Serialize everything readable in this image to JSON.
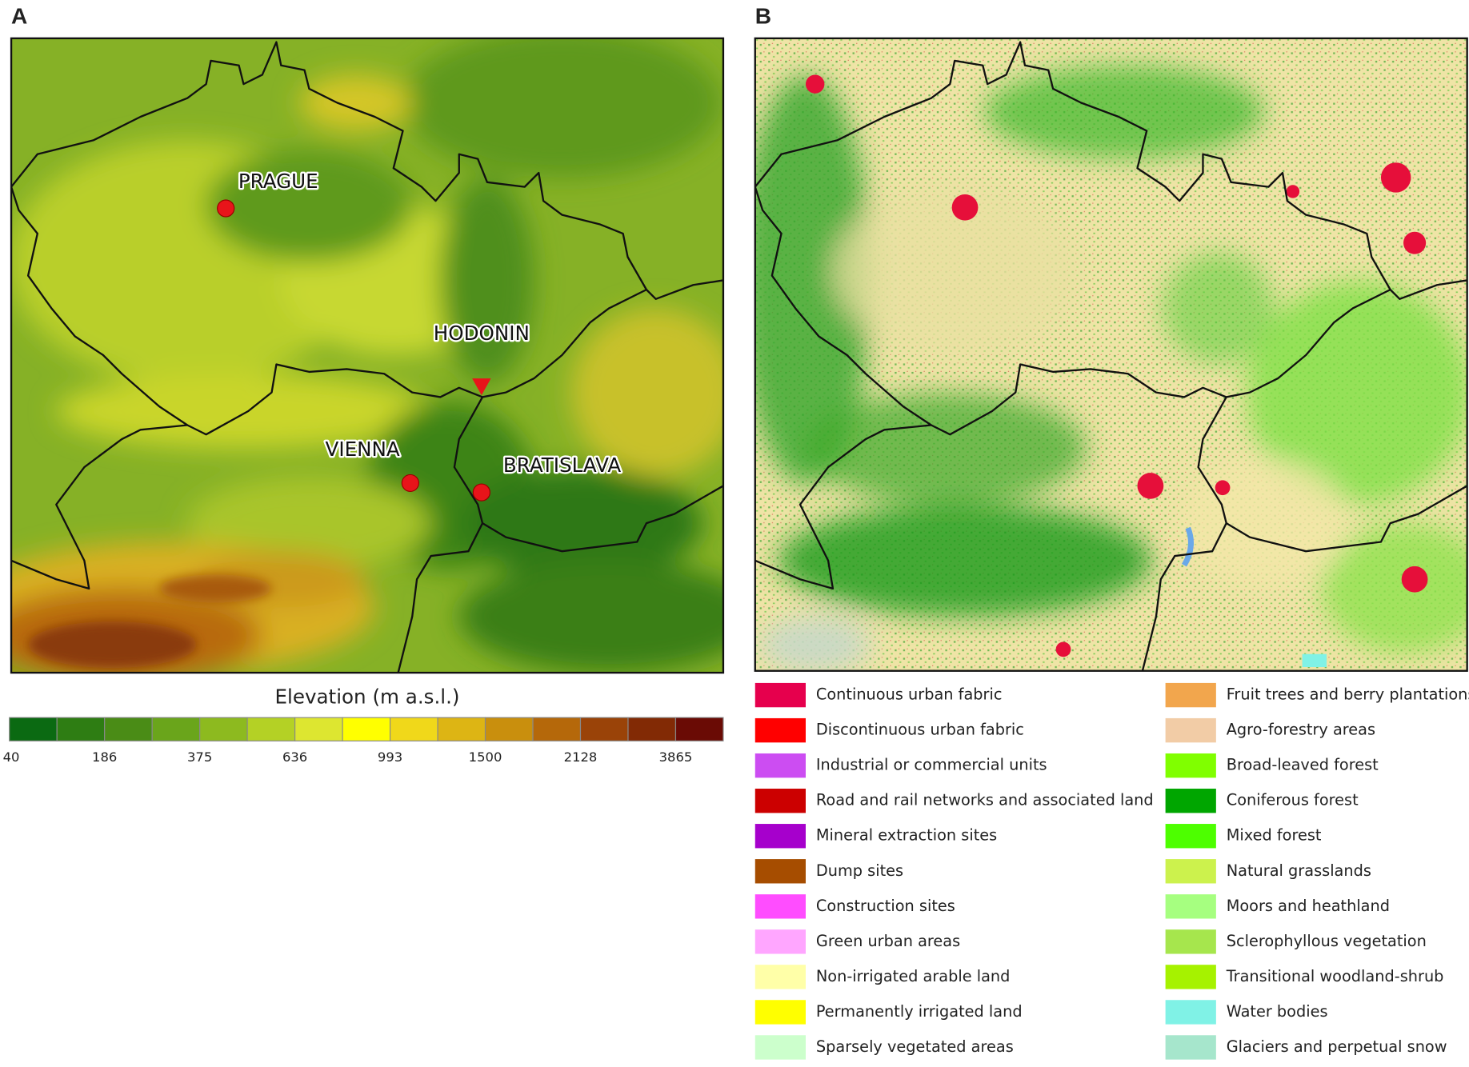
{
  "panels": [
    {
      "label": "A",
      "places": [
        "PRAGUE",
        "HODONIN",
        "VIENNA",
        "BRATISLAVA"
      ],
      "colorbar": {
        "title": "Elevation (m a.s.l.)",
        "colors": [
          "#0b6a12",
          "#2e7d13",
          "#4a8c16",
          "#6aa51b",
          "#8dba1f",
          "#b4d125",
          "#dde630",
          "#ffff00",
          "#f0d81a",
          "#ddb514",
          "#c98f0d",
          "#b5680a",
          "#9a4308",
          "#822a05",
          "#6a0b05"
        ],
        "ticks": [
          40,
          186,
          375,
          636,
          993,
          1500,
          2128,
          3865
        ]
      }
    },
    {
      "label": "B",
      "legend": [
        {
          "name": "Continuous urban fabric",
          "color": "#e6004d"
        },
        {
          "name": "Discontinuous urban fabric",
          "color": "#ff0000"
        },
        {
          "name": "Industrial or commercial units",
          "color": "#cc4df2"
        },
        {
          "name": "Road and rail networks and associated land",
          "color": "#cc0000"
        },
        {
          "name": "Mineral extraction sites",
          "color": "#a600cc"
        },
        {
          "name": "Dump sites",
          "color": "#a64d00"
        },
        {
          "name": "Construction sites",
          "color": "#ff4dff"
        },
        {
          "name": "Green urban areas",
          "color": "#ffa6ff"
        },
        {
          "name": "Non-irrigated arable land",
          "color": "#ffffa8"
        },
        {
          "name": "Permanently irrigated land",
          "color": "#ffff00"
        },
        {
          "name": "Sparsely vegetated areas",
          "color": "#ccffcc"
        },
        {
          "name": "Fruit trees and berry plantations",
          "color": "#f2a64d"
        },
        {
          "name": "Agro-forestry areas",
          "color": "#f2cca6"
        },
        {
          "name": "Broad-leaved forest",
          "color": "#80ff00"
        },
        {
          "name": "Coniferous forest",
          "color": "#00a600"
        },
        {
          "name": "Mixed forest",
          "color": "#4dff00"
        },
        {
          "name": "Natural grasslands",
          "color": "#ccf24d"
        },
        {
          "name": "Moors and heathland",
          "color": "#a6ff80"
        },
        {
          "name": "Sclerophyllous vegetation",
          "color": "#a6e64d"
        },
        {
          "name": "Transitional woodland-shrub",
          "color": "#a6f200"
        },
        {
          "name": "Water bodies",
          "color": "#80f2e6"
        },
        {
          "name": "Glaciers and perpetual snow",
          "color": "#a6e6cc"
        }
      ]
    }
  ]
}
